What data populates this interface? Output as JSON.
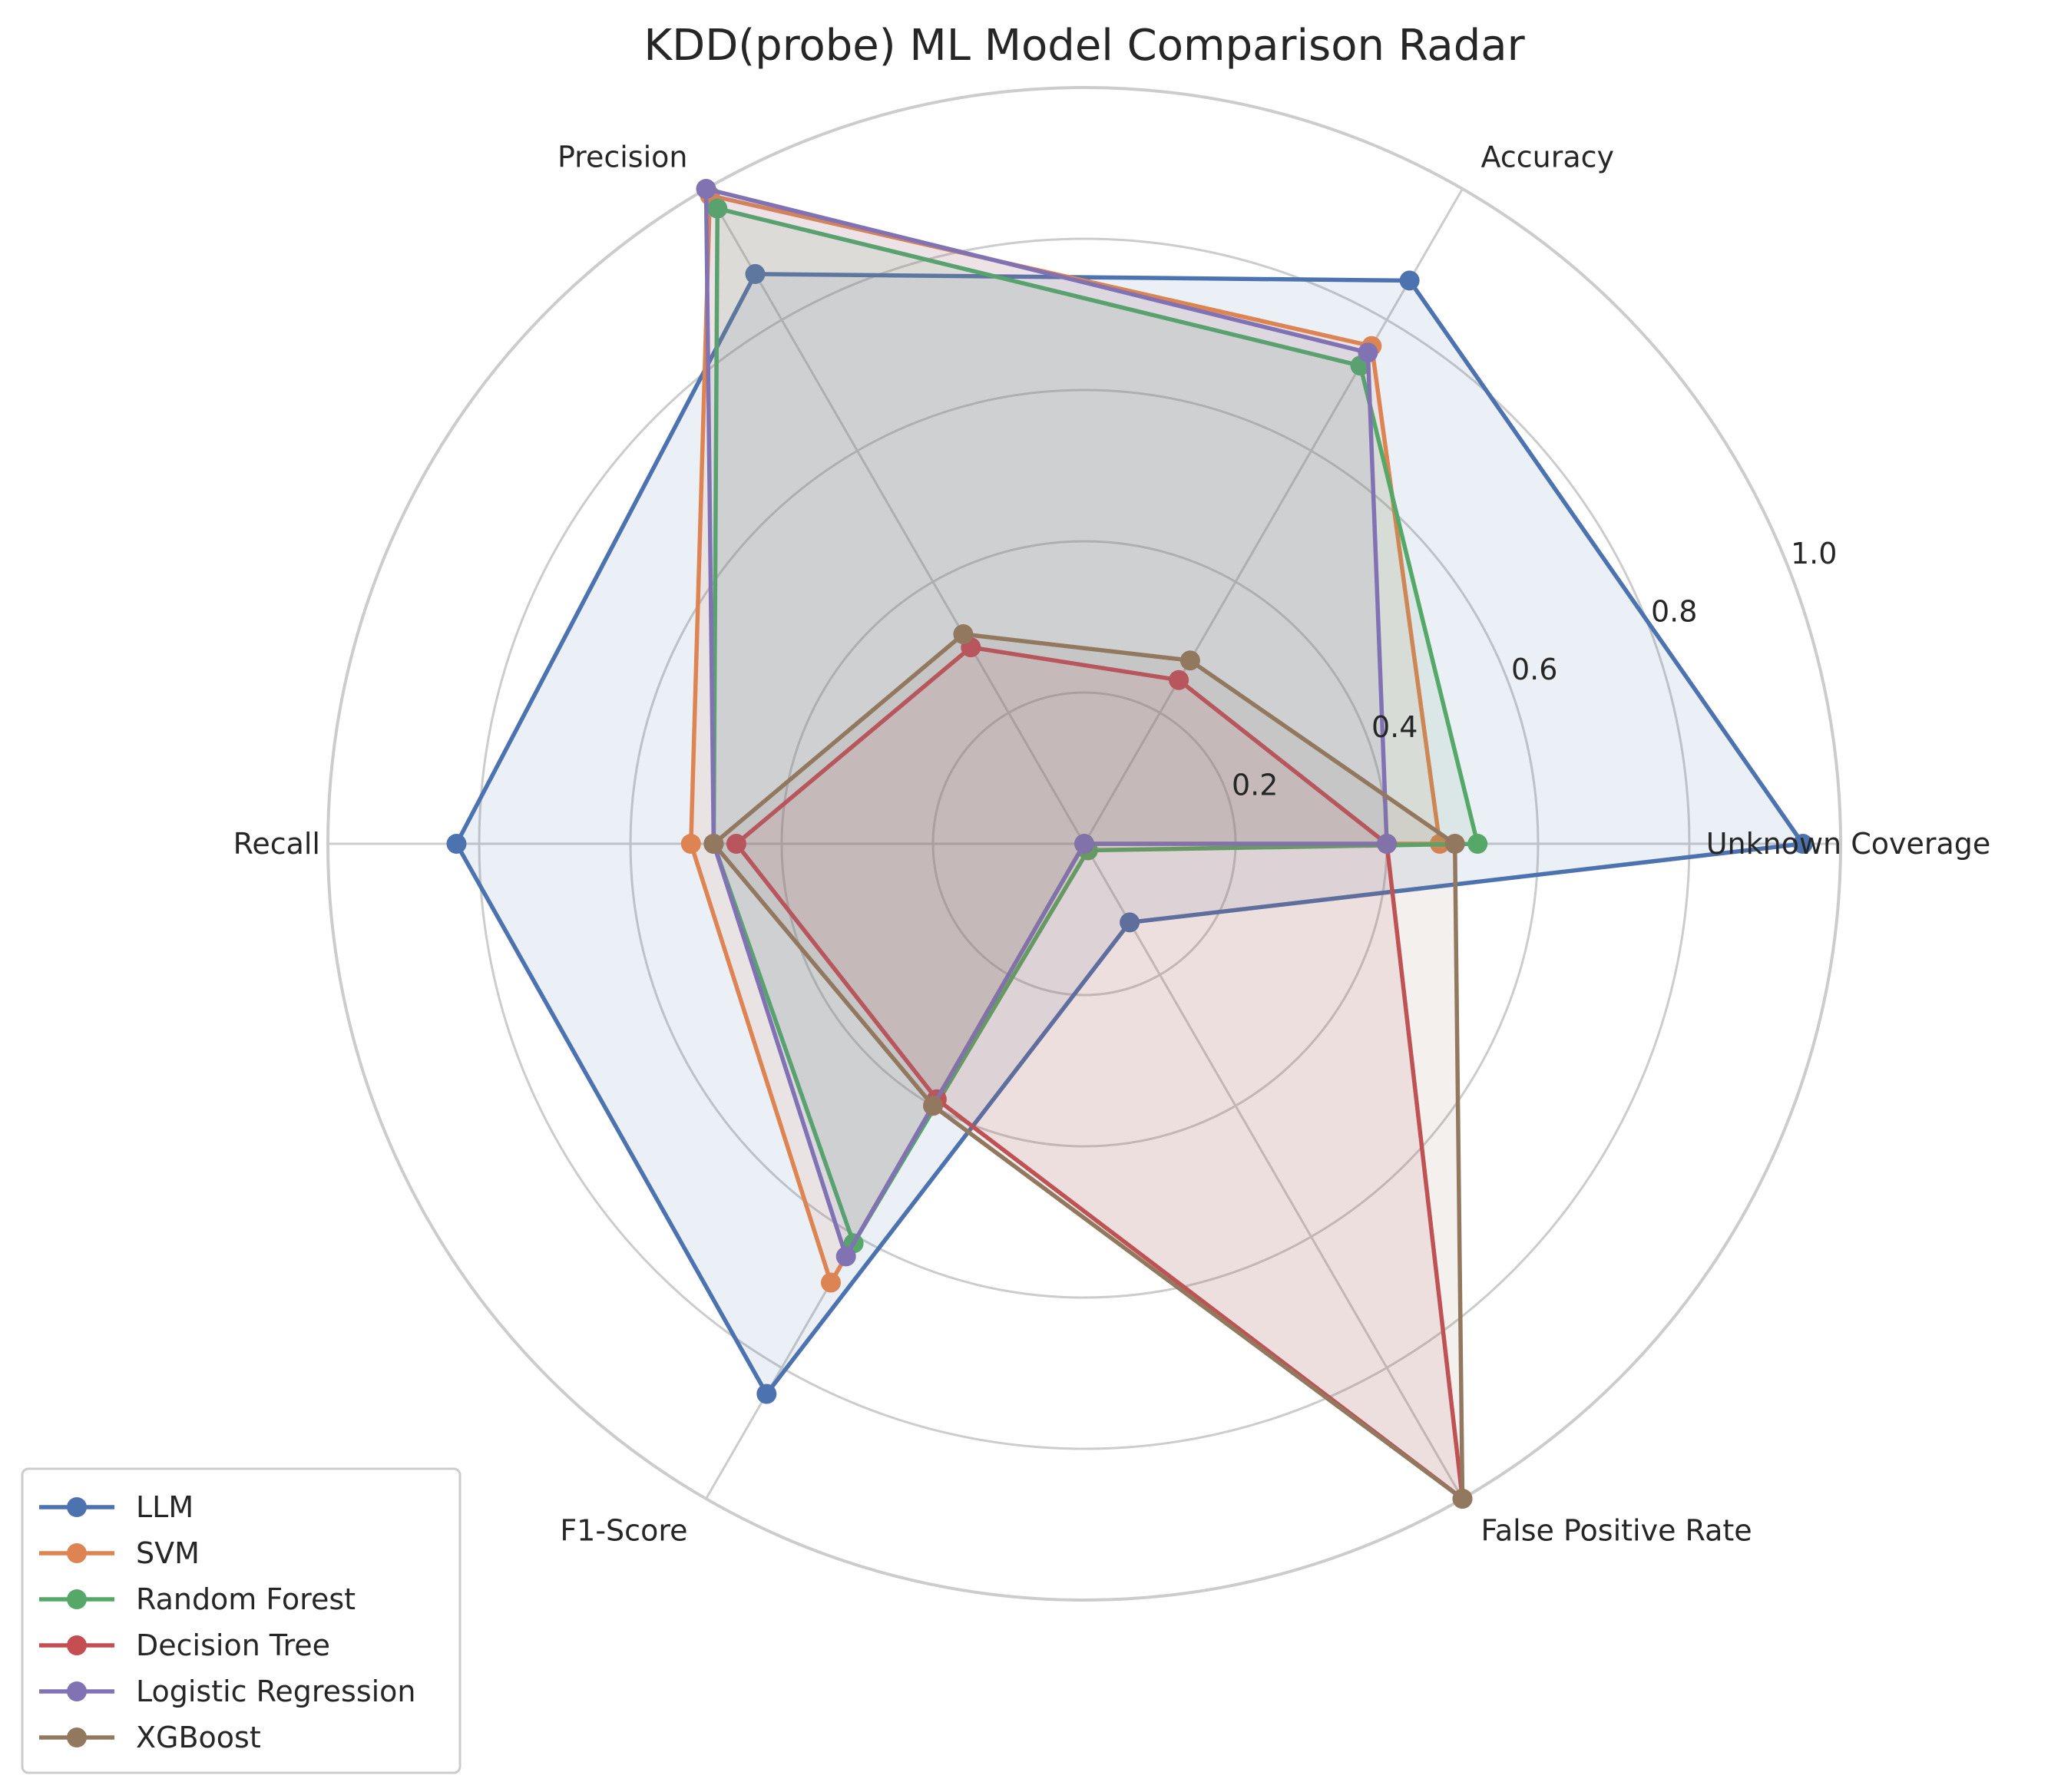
{
  "chart_data": {
    "type": "radar",
    "title": "KDD(probe) ML Model Comparison Radar",
    "axes": [
      "Unknown Coverage",
      "Accuracy",
      "Precision",
      "Recall",
      "F1-Score",
      "False Positive Rate"
    ],
    "rlim": [
      0,
      1.0
    ],
    "rticks": [
      0.2,
      0.4,
      0.6,
      0.8,
      1.0
    ],
    "rtick_labels": [
      "0.2",
      "0.4",
      "0.6",
      "0.8",
      "1.0"
    ],
    "grid": true,
    "legend_position": "lower-left",
    "series": [
      {
        "name": "LLM",
        "color": "#4c72b0",
        "values": [
          0.95,
          0.86,
          0.87,
          0.83,
          0.84,
          0.12
        ]
      },
      {
        "name": "SVM",
        "color": "#dd8452",
        "values": [
          0.47,
          0.76,
          0.99,
          0.52,
          0.67,
          0.0
        ]
      },
      {
        "name": "Random Forest",
        "color": "#55a868",
        "values": [
          0.52,
          0.73,
          0.97,
          0.49,
          0.61,
          0.01
        ]
      },
      {
        "name": "Decision Tree",
        "color": "#c44e52",
        "values": [
          0.4,
          0.25,
          0.3,
          0.46,
          0.39,
          1.0
        ]
      },
      {
        "name": "Logistic Regression",
        "color": "#8172b3",
        "values": [
          0.4,
          0.75,
          1.0,
          0.49,
          0.63,
          0.0
        ]
      },
      {
        "name": "XGBoost",
        "color": "#937860",
        "values": [
          0.49,
          0.28,
          0.32,
          0.49,
          0.4,
          1.0
        ]
      }
    ]
  }
}
